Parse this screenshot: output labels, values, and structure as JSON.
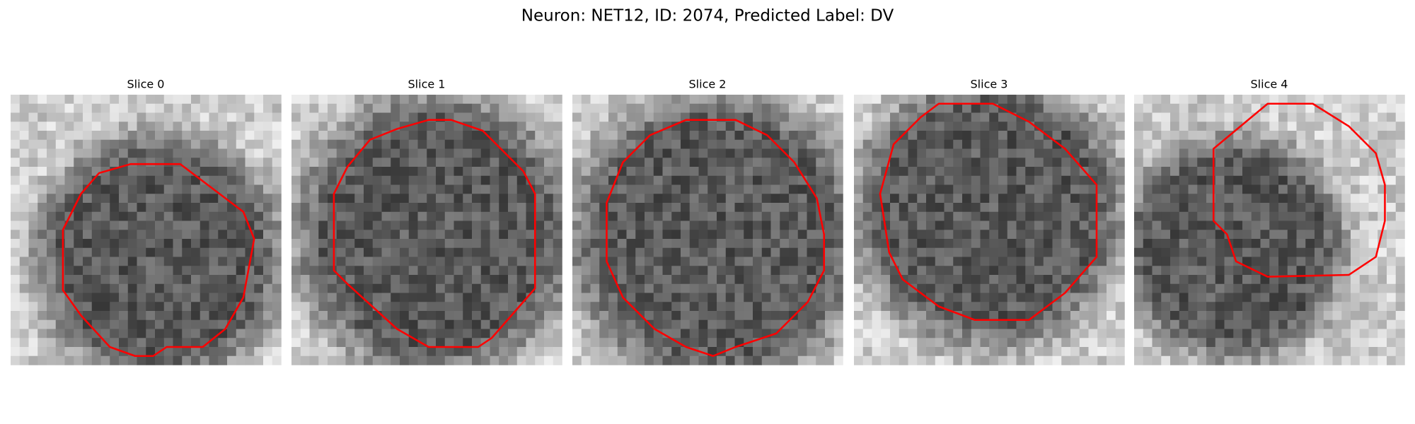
{
  "title": "Neuron: NET12, ID: 2074, Predicted Label: DV",
  "panels": [
    {
      "title": "Slice 0"
    },
    {
      "title": "Slice 1"
    },
    {
      "title": "Slice 2"
    },
    {
      "title": "Slice 3"
    },
    {
      "title": "Slice 4"
    }
  ]
}
